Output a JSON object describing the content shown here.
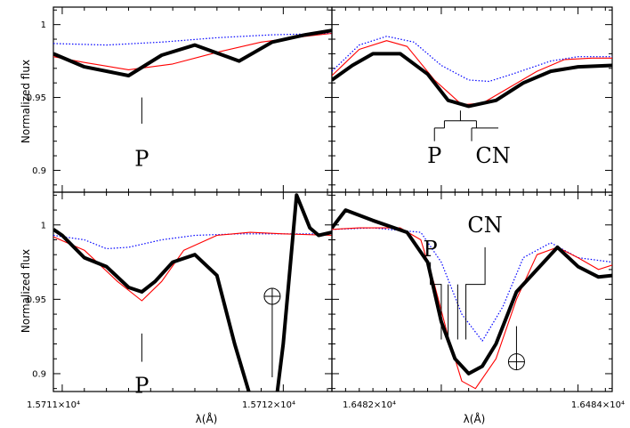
{
  "chart_data": {
    "type": "line",
    "layout": "2x2 grid of spectral panels",
    "ylabel": "Normalized flux",
    "xlabel": "λ(Å)",
    "x_tick_labels": {
      "left": [
        "1.5711×10⁴",
        "1.5712×10⁴"
      ],
      "right": [
        "1.6482×10⁴",
        "1.6484×10⁴"
      ]
    },
    "y_tick_labels": {
      "top": [
        "1",
        "0.95",
        "0.9"
      ],
      "bottom": [
        "1",
        "0.95",
        "0.9"
      ]
    },
    "line_styles": {
      "observed": {
        "color": "#000000",
        "style": "thick solid"
      },
      "model_red": {
        "color": "#ff0000",
        "style": "thin solid"
      },
      "model_blue": {
        "color": "#0000ff",
        "style": "dotted"
      }
    },
    "panels": [
      {
        "position": "top-left",
        "xlim": [
          15710.96,
          15712.22
        ],
        "ylim": [
          0.885,
          1.012
        ],
        "series": [
          {
            "key": "observed",
            "x": [
              15710.96,
              15711.1,
              15711.3,
              15711.45,
              15711.6,
              15711.8,
              15711.95,
              15712.1,
              15712.22
            ],
            "y": [
              0.98,
              0.971,
              0.965,
              0.979,
              0.986,
              0.975,
              0.988,
              0.993,
              0.996
            ]
          },
          {
            "key": "model_red",
            "x": [
              15710.96,
              15711.1,
              15711.3,
              15711.5,
              15711.7,
              15711.9,
              15712.1,
              15712.22
            ],
            "y": [
              0.978,
              0.974,
              0.969,
              0.973,
              0.981,
              0.988,
              0.992,
              0.994
            ]
          },
          {
            "key": "model_blue",
            "x": [
              15710.96,
              15711.2,
              15711.45,
              15711.7,
              15711.95,
              15712.22
            ],
            "y": [
              0.987,
              0.986,
              0.988,
              0.991,
              0.993,
              0.994
            ]
          }
        ],
        "annotations": [
          {
            "text": "P",
            "x": 15711.36,
            "tick_top": 0.95,
            "tick_bottom": 0.932,
            "text_y": 0.908
          }
        ]
      },
      {
        "position": "top-right",
        "xlim": [
          16482.2,
          16484.25
        ],
        "ylim": [
          0.885,
          1.012
        ],
        "series": [
          {
            "key": "observed",
            "x": [
              16482.2,
              16482.35,
              16482.5,
              16482.7,
              16482.9,
              16483.05,
              16483.2,
              16483.4,
              16483.6,
              16483.8,
              16484.0,
              16484.25
            ],
            "y": [
              0.962,
              0.972,
              0.98,
              0.98,
              0.966,
              0.948,
              0.944,
              0.948,
              0.96,
              0.968,
              0.971,
              0.972
            ]
          },
          {
            "key": "model_red",
            "x": [
              16482.2,
              16482.4,
              16482.6,
              16482.75,
              16482.95,
              16483.15,
              16483.3,
              16483.5,
              16483.7,
              16483.9,
              16484.1,
              16484.25
            ],
            "y": [
              0.965,
              0.983,
              0.989,
              0.985,
              0.962,
              0.945,
              0.946,
              0.957,
              0.968,
              0.976,
              0.977,
              0.977
            ]
          },
          {
            "key": "model_blue",
            "x": [
              16482.2,
              16482.4,
              16482.6,
              16482.8,
              16483.0,
              16483.2,
              16483.35,
              16483.55,
              16483.8,
              16484.0,
              16484.25
            ],
            "y": [
              0.968,
              0.986,
              0.992,
              0.988,
              0.972,
              0.962,
              0.961,
              0.967,
              0.975,
              0.978,
              0.978
            ]
          }
        ],
        "annotations": [
          {
            "text": "P",
            "x": 16482.95
          },
          {
            "text": "CN",
            "x": 16483.3
          }
        ]
      },
      {
        "position": "bottom-left",
        "xlim": [
          15710.96,
          15712.22
        ],
        "ylim": [
          0.888,
          1.022
        ],
        "series": [
          {
            "key": "observed",
            "x": [
              15710.96,
              15711.0,
              15711.1,
              15711.2,
              15711.3,
              15711.36,
              15711.42,
              15711.5,
              15711.6,
              15711.7,
              15711.78,
              15711.86,
              15711.95,
              15712.0,
              15712.06,
              15712.12,
              15712.16,
              15712.22
            ],
            "y": [
              0.997,
              0.993,
              0.978,
              0.972,
              0.958,
              0.955,
              0.962,
              0.975,
              0.98,
              0.966,
              0.92,
              0.88,
              0.86,
              0.92,
              1.02,
              0.998,
              0.993,
              0.995
            ]
          },
          {
            "key": "model_red",
            "x": [
              15710.96,
              15711.1,
              15711.25,
              15711.36,
              15711.45,
              15711.55,
              15711.7,
              15711.85,
              15712.0,
              15712.22
            ],
            "y": [
              0.992,
              0.983,
              0.962,
              0.949,
              0.962,
              0.983,
              0.993,
              0.995,
              0.994,
              0.993
            ]
          },
          {
            "key": "model_blue",
            "x": [
              15710.96,
              15711.1,
              15711.2,
              15711.3,
              15711.45,
              15711.6,
              15711.8,
              15712.0,
              15712.22
            ],
            "y": [
              0.993,
              0.99,
              0.984,
              0.985,
              0.99,
              0.993,
              0.994,
              0.994,
              0.994
            ]
          }
        ],
        "annotations": [
          {
            "text": "P",
            "x": 15711.36,
            "tick_top": 0.927,
            "tick_bottom": 0.908,
            "text_y": 0.892
          },
          {
            "text": "⊕",
            "x": 15711.95,
            "y": 0.952
          }
        ]
      },
      {
        "position": "bottom-right",
        "xlim": [
          16482.2,
          16484.25
        ],
        "ylim": [
          0.888,
          1.022
        ],
        "series": [
          {
            "key": "observed",
            "x": [
              16482.2,
              16482.3,
              16482.5,
              16482.75,
              16482.9,
              16483.0,
              16483.1,
              16483.2,
              16483.3,
              16483.4,
              16483.55,
              16483.7,
              16483.85,
              16484.0,
              16484.15,
              16484.25
            ],
            "y": [
              0.998,
              1.01,
              1.003,
              0.995,
              0.975,
              0.935,
              0.91,
              0.9,
              0.905,
              0.92,
              0.955,
              0.97,
              0.985,
              0.972,
              0.965,
              0.966
            ]
          },
          {
            "key": "model_red",
            "x": [
              16482.2,
              16482.4,
              16482.7,
              16482.85,
              16482.95,
              16483.05,
              16483.15,
              16483.25,
              16483.4,
              16483.55,
              16483.7,
              16483.85,
              16484.0,
              16484.15,
              16484.25
            ],
            "y": [
              0.997,
              0.998,
              0.998,
              0.99,
              0.96,
              0.925,
              0.895,
              0.89,
              0.91,
              0.95,
              0.98,
              0.985,
              0.978,
              0.97,
              0.973
            ]
          },
          {
            "key": "model_blue",
            "x": [
              16482.2,
              16482.5,
              16482.85,
              16483.0,
              16483.15,
              16483.3,
              16483.45,
              16483.6,
              16483.8,
              16484.0,
              16484.25
            ],
            "y": [
              0.997,
              0.998,
              0.995,
              0.975,
              0.94,
              0.922,
              0.945,
              0.978,
              0.988,
              0.978,
              0.975
            ]
          }
        ],
        "annotations": [
          {
            "text": "P",
            "x": 16482.92
          },
          {
            "text": "CN",
            "x": 16483.22
          },
          {
            "text": "⊕",
            "x": 16483.55,
            "y": 0.908
          }
        ]
      }
    ]
  }
}
